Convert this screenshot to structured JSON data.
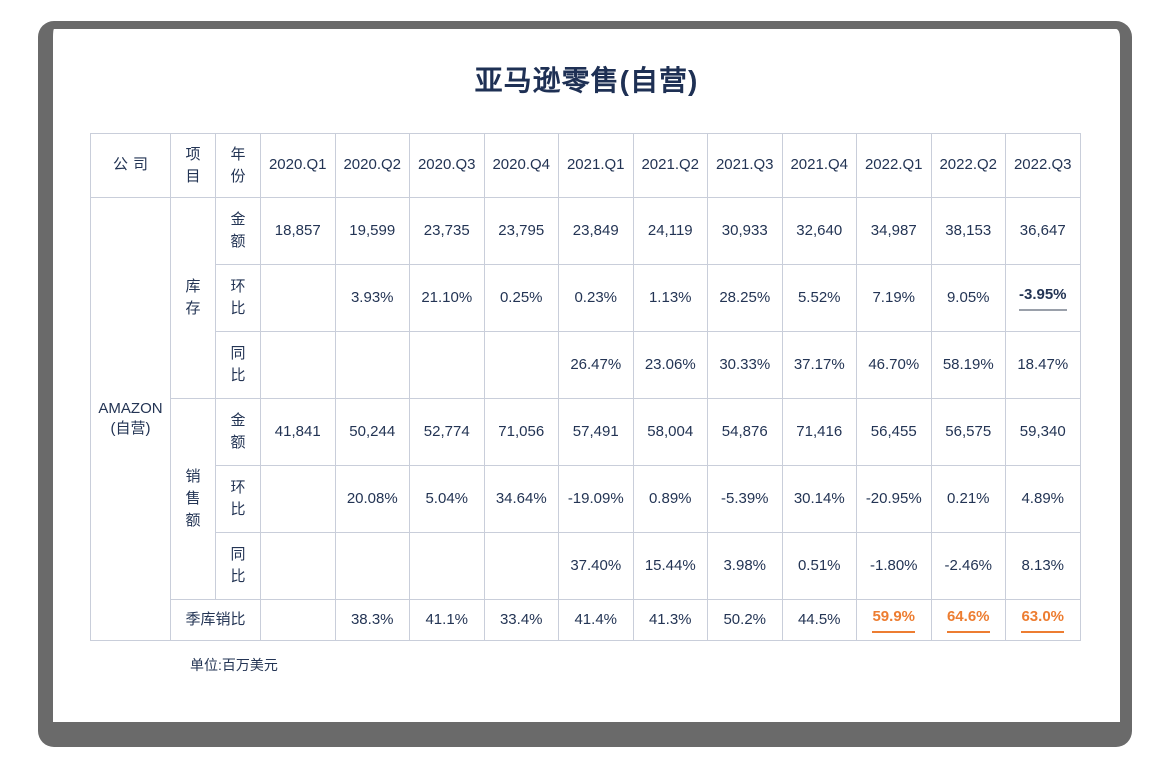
{
  "page": {
    "title": "亚马逊零售(自营)",
    "footnote": "单位:百万美元"
  },
  "colors": {
    "text_navy": "#233454",
    "accent_orange": "#ED7D31",
    "frame_gray": "#6A6A6A",
    "cell_border": "#C9CEDA"
  },
  "chart_data": {
    "type": "table",
    "title": "亚马逊零售(自营)",
    "unit_note": "单位:百万美元",
    "header": {
      "company": "公司",
      "item": "项目",
      "year": "年份"
    },
    "company": {
      "line1": "AMAZON",
      "line2": "(自营)"
    },
    "columns": [
      "2020.Q1",
      "2020.Q2",
      "2020.Q3",
      "2020.Q4",
      "2021.Q1",
      "2021.Q2",
      "2021.Q3",
      "2021.Q4",
      "2022.Q1",
      "2022.Q2",
      "2022.Q3"
    ],
    "rows": [
      {
        "group": "库存",
        "metric": "金额",
        "values": [
          "18,857",
          "19,599",
          "23,735",
          "23,795",
          "23,849",
          "24,119",
          "30,933",
          "32,640",
          "34,987",
          "38,153",
          "36,647"
        ]
      },
      {
        "group": "库存",
        "metric": "环比",
        "values": [
          "",
          "3.93%",
          "21.10%",
          "0.25%",
          "0.23%",
          "1.13%",
          "28.25%",
          "5.52%",
          "7.19%",
          "9.05%",
          "-3.95%"
        ]
      },
      {
        "group": "库存",
        "metric": "同比",
        "values": [
          "",
          "",
          "",
          "",
          "26.47%",
          "23.06%",
          "30.33%",
          "37.17%",
          "46.70%",
          "58.19%",
          "18.47%"
        ]
      },
      {
        "group": "销售额",
        "metric": "金额",
        "values": [
          "41,841",
          "50,244",
          "52,774",
          "71,056",
          "57,491",
          "58,004",
          "54,876",
          "71,416",
          "56,455",
          "56,575",
          "59,340"
        ]
      },
      {
        "group": "销售额",
        "metric": "环比",
        "values": [
          "",
          "20.08%",
          "5.04%",
          "34.64%",
          "-19.09%",
          "0.89%",
          "-5.39%",
          "30.14%",
          "-20.95%",
          "0.21%",
          "4.89%"
        ]
      },
      {
        "group": "销售额",
        "metric": "同比",
        "values": [
          "",
          "",
          "",
          "",
          "37.40%",
          "15.44%",
          "3.98%",
          "0.51%",
          "-1.80%",
          "-2.46%",
          "8.13%"
        ]
      },
      {
        "group": "季库销比",
        "metric": "",
        "values": [
          "",
          "38.3%",
          "41.1%",
          "33.4%",
          "41.4%",
          "41.3%",
          "50.2%",
          "44.5%",
          "59.9%",
          "64.6%",
          "63.0%"
        ]
      }
    ]
  }
}
